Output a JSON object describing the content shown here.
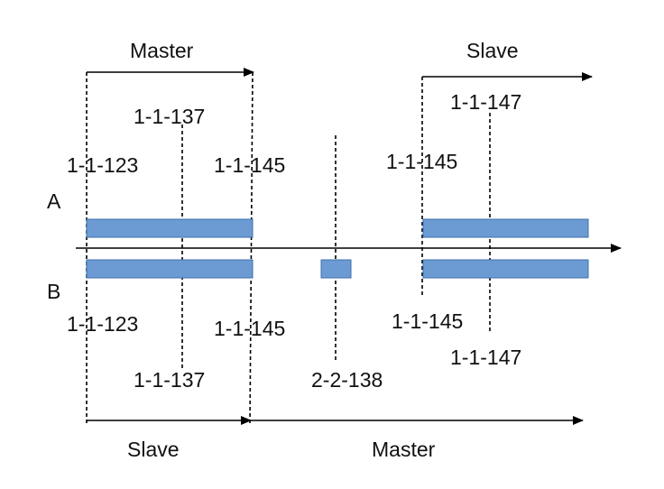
{
  "row_labels": {
    "a": "A",
    "b": "B"
  },
  "top": {
    "master_label": "Master",
    "slave_label": "Slave",
    "labels": {
      "l123": "1-1-123",
      "l137": "1-1-137",
      "l145_left": "1-1-145",
      "l145_right": "1-1-145",
      "l147": "1-1-147"
    }
  },
  "bottom": {
    "slave_label": "Slave",
    "master_label": "Master",
    "labels": {
      "l123": "1-1-123",
      "l137": "1-1-137",
      "l145_left": "1-1-145",
      "l138": "2-2-138",
      "l145_right": "1-1-145",
      "l147": "1-1-147"
    }
  },
  "colors": {
    "bar_fill": "#6b9bd2",
    "bar_stroke": "#3f6fae"
  }
}
